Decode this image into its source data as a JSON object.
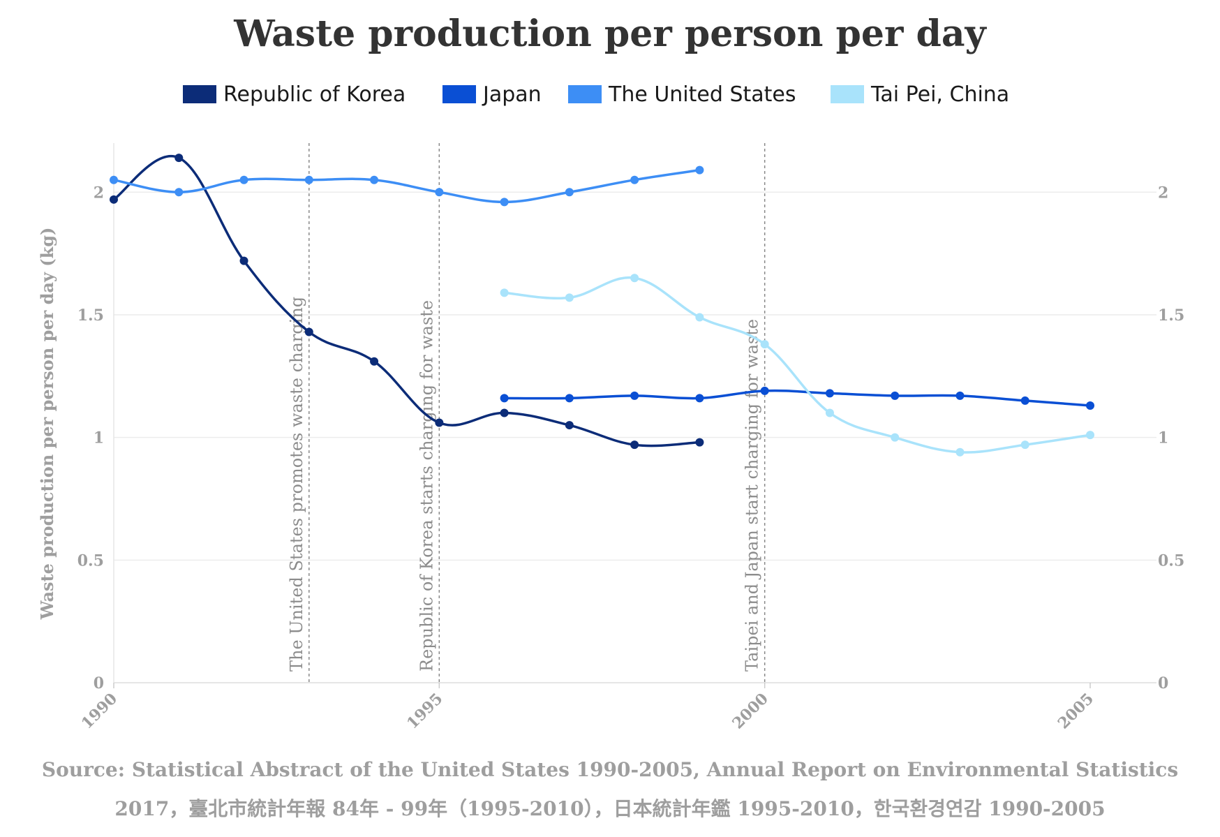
{
  "title": "Waste production per person per day",
  "source_line1": "Source: Statistical Abstract of the United States 1990-2005, Annual Report on Environmental Statistics",
  "source_line2": "2017，臺北市統計年報 84年 - 99年（1995-2010），日本統計年鑑 1995-2010，한국환경연감 1990-2005",
  "legend": [
    {
      "label": "Republic of Korea",
      "color": "#0c2c78"
    },
    {
      "label": "Japan",
      "color": "#0a4fd4"
    },
    {
      "label": "The United States",
      "color": "#3d8ef5"
    },
    {
      "label": "Tai Pei, China",
      "color": "#a9e3fb"
    }
  ],
  "chart_data": {
    "type": "line",
    "title": "Waste production per person per day",
    "xlabel": "",
    "ylabel": "Waste production per person per day (kg)",
    "xlim": [
      1990,
      2006
    ],
    "ylim": [
      0,
      2.2
    ],
    "x_ticks": [
      "1990",
      "1995",
      "2000",
      "2005"
    ],
    "y_ticks_left": [
      "0",
      "0.5",
      "1",
      "1.5",
      "2"
    ],
    "y_ticks_right": [
      "0",
      "0.5",
      "1",
      "1.5",
      "2"
    ],
    "grid": true,
    "legend_position": "top-center",
    "series": [
      {
        "name": "Republic of Korea",
        "color": "#0c2c78",
        "x": [
          1990,
          1991,
          1992,
          1993,
          1994,
          1995,
          1996,
          1997,
          1998,
          1999
        ],
        "y": [
          1.97,
          2.14,
          1.72,
          1.43,
          1.31,
          1.06,
          1.1,
          1.05,
          0.97,
          0.98
        ]
      },
      {
        "name": "Japan",
        "color": "#0a4fd4",
        "x": [
          1996,
          1997,
          1998,
          1999,
          2000,
          2001,
          2002,
          2003,
          2004,
          2005
        ],
        "y": [
          1.16,
          1.16,
          1.17,
          1.16,
          1.19,
          1.18,
          1.17,
          1.17,
          1.15,
          1.13
        ]
      },
      {
        "name": "The United States",
        "color": "#3d8ef5",
        "x": [
          1990,
          1991,
          1992,
          1993,
          1994,
          1995,
          1996,
          1997,
          1998,
          1999
        ],
        "y": [
          2.05,
          2.0,
          2.05,
          2.05,
          2.05,
          2.0,
          1.96,
          2.0,
          2.05,
          2.09
        ]
      },
      {
        "name": "Tai Pei, China",
        "color": "#a9e3fb",
        "x": [
          1996,
          1997,
          1998,
          1999,
          2000,
          2001,
          2002,
          2003,
          2004,
          2005
        ],
        "y": [
          1.59,
          1.57,
          1.65,
          1.49,
          1.38,
          1.1,
          1.0,
          0.94,
          0.97,
          1.01
        ]
      }
    ],
    "annotations": [
      {
        "x": 1993,
        "text": "The United States promotes waste charging"
      },
      {
        "x": 1995,
        "text": "Republic of Korea starts charging for waste"
      },
      {
        "x": 2000,
        "text": "Taipei and Japan start charging for waste"
      }
    ]
  }
}
